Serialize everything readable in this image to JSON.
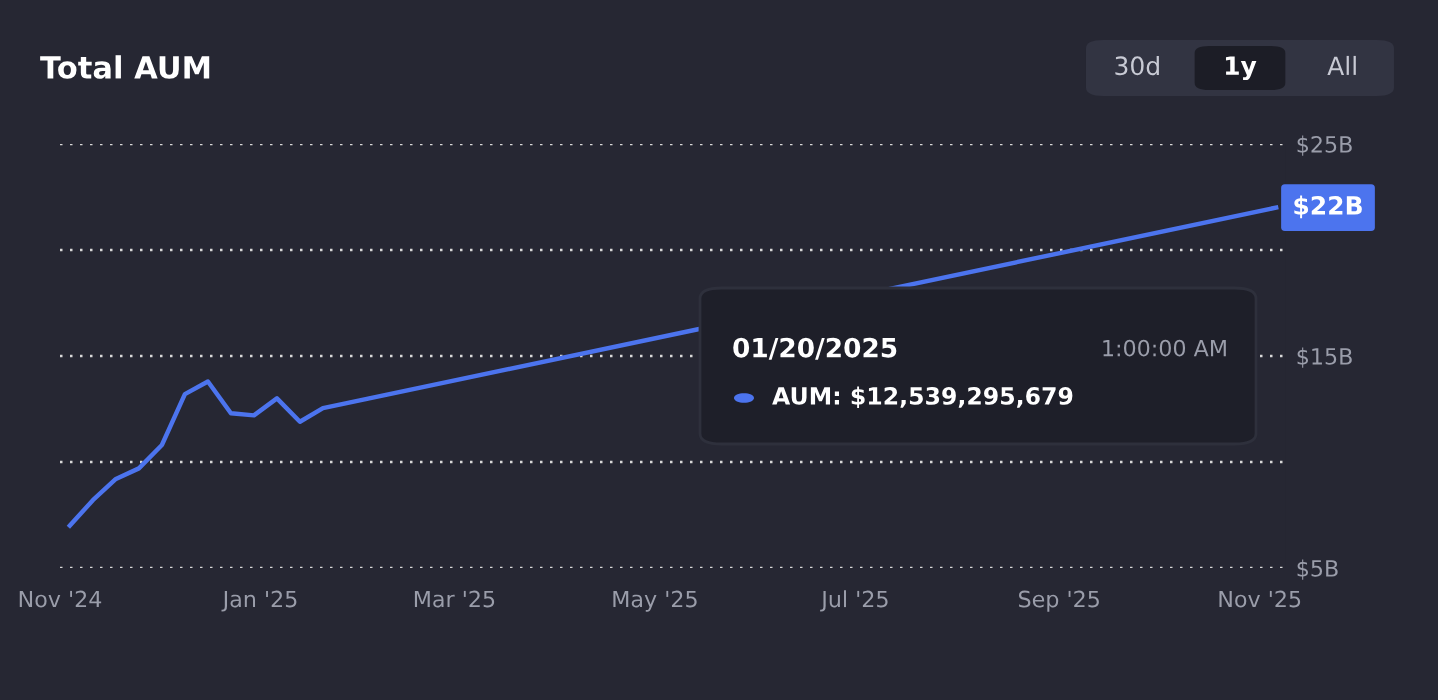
{
  "chart_data": {
    "type": "line",
    "title": "Total AUM",
    "x": [
      "2024-11-04",
      "2024-11-11",
      "2024-11-18",
      "2024-11-25",
      "2024-12-02",
      "2024-12-09",
      "2024-12-16",
      "2024-12-23",
      "2024-12-30",
      "2025-01-06",
      "2025-01-13",
      "2025-01-20",
      "2025-11-06"
    ],
    "series": [
      {
        "color": "#4c74ee",
        "values": [
          7.0,
          8.2,
          9.2,
          9.7,
          10.8,
          13.2,
          13.8,
          12.3,
          12.2,
          13.0,
          11.9,
          12.54,
          22
        ]
      }
    ],
    "xlim": [
      "2024-11-01",
      "2025-11-09"
    ],
    "xticks": [
      {
        "value": "2024-11-01",
        "label": "Nov '24"
      },
      {
        "value": "2025-01-01",
        "label": "Jan '25"
      },
      {
        "value": "2025-03-01",
        "label": "Mar '25"
      },
      {
        "value": "2025-05-01",
        "label": "May '25"
      },
      {
        "value": "2025-07-01",
        "label": "Jul '25"
      },
      {
        "value": "2025-09-01",
        "label": "Sep '25"
      },
      {
        "value": "2025-11-01",
        "label": "Nov '25"
      }
    ],
    "ylim": [
      5,
      25
    ],
    "yticks": [
      {
        "value": 5,
        "label": "$5B"
      },
      {
        "value": 10,
        "label": null
      },
      {
        "value": 15,
        "label": "$15B"
      },
      {
        "value": 20,
        "label": null
      },
      {
        "value": 25,
        "label": "$25B"
      }
    ],
    "grid": "y",
    "line_style": "solid",
    "annotations": [
      "30d",
      "1y",
      "All",
      {
        "text": "$22B",
        "x": "2025-11-06",
        "y": 22
      },
      "01/20/2025",
      "1:00:00 AM",
      "AUM: $12,539,295,679"
    ]
  }
}
